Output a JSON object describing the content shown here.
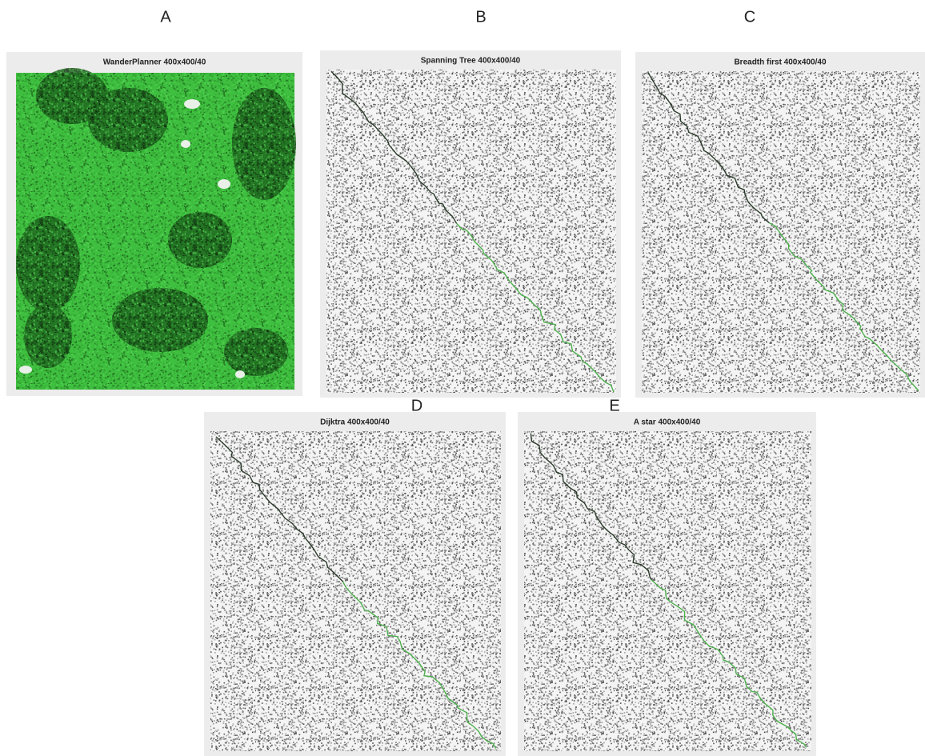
{
  "panels": [
    {
      "letter": "A",
      "title": "WanderPlanner 400x400/40"
    },
    {
      "letter": "B",
      "title": "Spanning Tree 400x400/40"
    },
    {
      "letter": "C",
      "title": "Breadth first 400x400/40"
    },
    {
      "letter": "D",
      "title": "Dijktra 400x400/40"
    },
    {
      "letter": "E",
      "title": "A star 400x400/40"
    }
  ]
}
